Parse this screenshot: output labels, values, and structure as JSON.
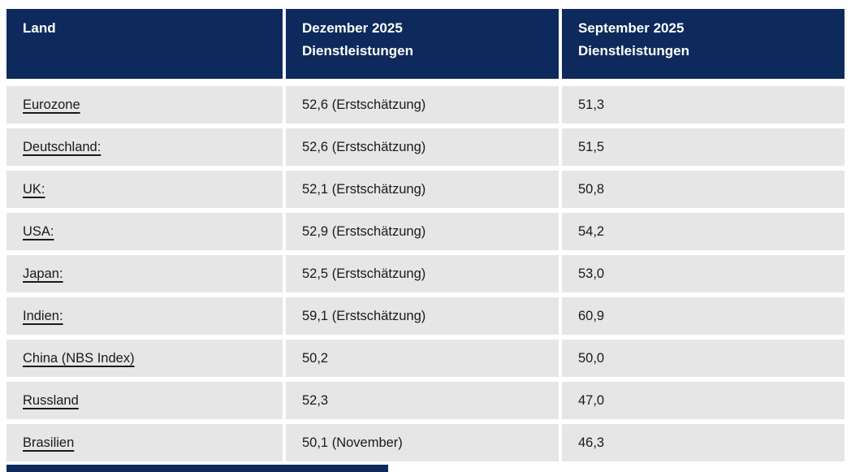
{
  "colors": {
    "header_bg": "#0e2a5c",
    "row_bg": "#e6e6e6",
    "header_text": "#ffffff",
    "body_text": "#1a1a1a",
    "page_bg": "#ffffff"
  },
  "table": {
    "columns": [
      {
        "label": "Land"
      },
      {
        "label": "Dezember 2025\nDienstleistungen"
      },
      {
        "label": "September 2025\nDienstleistungen"
      }
    ],
    "rows": [
      {
        "land": "Eurozone",
        "dezember": "52,6 (Erstschätzung)",
        "september": "51,3"
      },
      {
        "land": "Deutschland:",
        "dezember": "52,6 (Erstschätzung)",
        "september": "51,5"
      },
      {
        "land": "UK:",
        "dezember": "52,1 (Erstschätzung)",
        "september": "50,8"
      },
      {
        "land": "USA:",
        "dezember": "52,9 (Erstschätzung)",
        "september": "54,2"
      },
      {
        "land": "Japan:",
        "dezember": "52,5 (Erstschätzung)",
        "september": "53,0"
      },
      {
        "land": "Indien:",
        "dezember": "59,1 (Erstschätzung)",
        "september": "60,9"
      },
      {
        "land": "China (NBS Index)",
        "dezember": "50,2",
        "september": "50,0"
      },
      {
        "land": "Russland",
        "dezember": "52,3",
        "september": "47,0"
      },
      {
        "land": "Brasilien",
        "dezember": "50,1 (November)",
        "september": "46,3"
      }
    ]
  }
}
